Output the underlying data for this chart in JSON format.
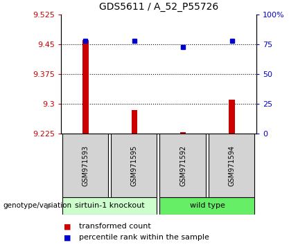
{
  "title": "GDS5611 / A_52_P55726",
  "samples": [
    "GSM971593",
    "GSM971595",
    "GSM971592",
    "GSM971594"
  ],
  "red_values": [
    9.46,
    9.285,
    9.228,
    9.31
  ],
  "blue_values": [
    78,
    78,
    73,
    78
  ],
  "ylim_left": [
    9.225,
    9.525
  ],
  "ylim_right": [
    0,
    100
  ],
  "yticks_left": [
    9.225,
    9.3,
    9.375,
    9.45,
    9.525
  ],
  "yticks_right": [
    0,
    25,
    50,
    75,
    100
  ],
  "ytick_labels_left": [
    "9.225",
    "9.3",
    "9.375",
    "9.45",
    "9.525"
  ],
  "ytick_labels_right": [
    "0",
    "25",
    "50",
    "75",
    "100%"
  ],
  "hlines": [
    9.45,
    9.375,
    9.3
  ],
  "bar_base": 9.225,
  "legend_red": "transformed count",
  "legend_blue": "percentile rank within the sample",
  "group_label_1": "sirtuin-1 knockout",
  "group_label_2": "wild type",
  "group_color_1": "#ccffcc",
  "group_color_2": "#66ee66",
  "sample_box_color": "#d3d3d3",
  "bar_color": "#cc0000",
  "dot_color": "#0000cc",
  "title_fontsize": 10,
  "tick_fontsize": 8,
  "legend_fontsize": 8
}
